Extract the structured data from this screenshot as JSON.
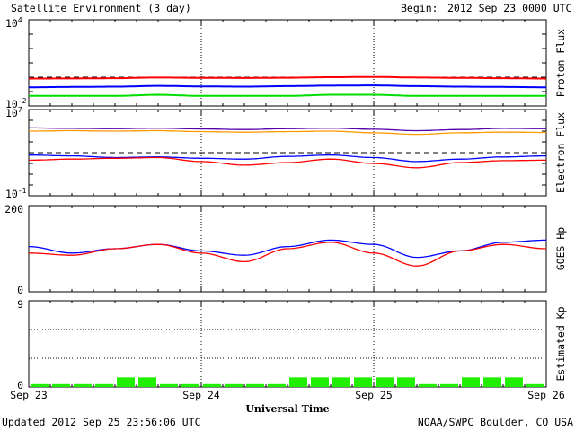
{
  "header": {
    "title": "Satellite Environment (3 day)",
    "begin_label": "Begin:",
    "begin_value": "2012 Sep 23 0000 UTC"
  },
  "footer": {
    "updated": "Updated 2012 Sep 25 23:56:06 UTC",
    "credit": "NOAA/SWPC Boulder, CO USA"
  },
  "colors": {
    "red": "#ff0000",
    "blue": "#0000ff",
    "green": "#00dd00",
    "orange": "#ff9900",
    "purple": "#5500aa",
    "kp_green": "#22ee00"
  },
  "chart_data": [
    {
      "type": "line",
      "ylabel": "Proton Flux",
      "scale": "log",
      "ylim_exp": [
        -2,
        4
      ],
      "tick_labels": [
        {
          "base": "10",
          "exp": "4"
        },
        {
          "base": "10",
          "exp": "-2"
        }
      ],
      "threshold": 1,
      "x_days": [
        0,
        0.25,
        0.5,
        0.75,
        1,
        1.25,
        1.5,
        1.75,
        2,
        2.25,
        2.5,
        2.75,
        3
      ],
      "series": [
        {
          "color_key": "red",
          "values": [
            0.8,
            0.82,
            0.85,
            0.95,
            0.9,
            0.88,
            0.92,
            1.0,
            1.05,
            0.95,
            0.9,
            0.85,
            0.8
          ]
        },
        {
          "color_key": "blue",
          "values": [
            0.2,
            0.21,
            0.22,
            0.25,
            0.23,
            0.22,
            0.24,
            0.26,
            0.27,
            0.24,
            0.22,
            0.21,
            0.2
          ]
        },
        {
          "color_key": "green",
          "values": [
            0.05,
            0.05,
            0.05,
            0.06,
            0.05,
            0.05,
            0.05,
            0.06,
            0.06,
            0.05,
            0.05,
            0.05,
            0.05
          ]
        }
      ]
    },
    {
      "type": "line",
      "ylabel": "Electron Flux",
      "scale": "log",
      "ylim_exp": [
        -1,
        7
      ],
      "tick_labels": [
        {
          "base": "10",
          "exp": "7"
        },
        {
          "base": "10",
          "exp": "-1"
        }
      ],
      "threshold": 1000,
      "x_days": [
        0,
        0.25,
        0.5,
        0.75,
        1,
        1.25,
        1.5,
        1.75,
        2,
        2.25,
        2.5,
        2.75,
        3
      ],
      "series": [
        {
          "color_key": "purple",
          "values": [
            200000,
            180000,
            170000,
            190000,
            160000,
            140000,
            170000,
            190000,
            150000,
            110000,
            140000,
            180000,
            170000
          ]
        },
        {
          "color_key": "orange",
          "values": [
            100000,
            110000,
            100000,
            110000,
            90000,
            80000,
            90000,
            100000,
            70000,
            50000,
            70000,
            80000,
            75000
          ]
        },
        {
          "color_key": "blue",
          "values": [
            600,
            500,
            350,
            400,
            300,
            250,
            450,
            600,
            350,
            150,
            250,
            400,
            500
          ]
        },
        {
          "color_key": "red",
          "values": [
            200,
            250,
            300,
            350,
            150,
            70,
            120,
            250,
            100,
            40,
            120,
            180,
            200
          ]
        }
      ]
    },
    {
      "type": "line",
      "ylabel": "GOES Hp",
      "scale": "linear",
      "ylim": [
        0,
        200
      ],
      "tick_labels": [
        "200",
        "0"
      ],
      "x_days": [
        0,
        0.25,
        0.5,
        0.75,
        1,
        1.25,
        1.5,
        1.75,
        2,
        2.25,
        2.5,
        2.75,
        3
      ],
      "series": [
        {
          "color_key": "blue",
          "values": [
            105,
            90,
            100,
            110,
            95,
            85,
            105,
            120,
            110,
            80,
            95,
            115,
            120
          ]
        },
        {
          "color_key": "red",
          "values": [
            90,
            85,
            100,
            110,
            90,
            70,
            100,
            115,
            90,
            60,
            95,
            110,
            100
          ]
        }
      ]
    },
    {
      "type": "bar",
      "ylabel": "Estimated Kp",
      "ylim": [
        0,
        9
      ],
      "tick_labels": [
        "9",
        "0"
      ],
      "values": [
        0.3,
        0.3,
        0.3,
        0.3,
        1,
        1,
        0.3,
        0.3,
        0.3,
        0.3,
        0.3,
        0.3,
        1,
        1,
        1,
        1,
        1,
        1,
        0.3,
        0.3,
        1,
        1,
        1,
        0.3
      ]
    }
  ],
  "x_axis": {
    "tick_labels": [
      "Sep 23",
      "Sep 24",
      "Sep 25",
      "Sep 26"
    ],
    "title": "Universal Time"
  }
}
